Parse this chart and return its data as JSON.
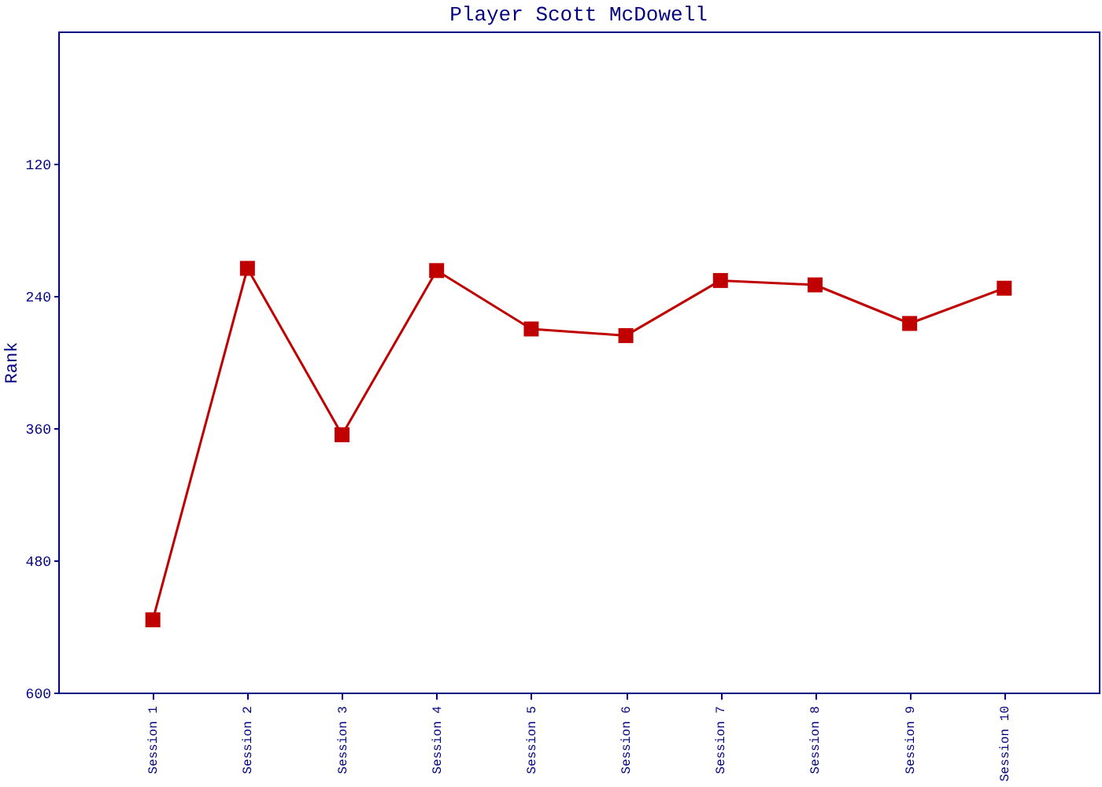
{
  "chart_data": {
    "type": "line",
    "title": "Player Scott McDowell",
    "ylabel": "Rank",
    "categories": [
      "Session 1",
      "Session 2",
      "Session 3",
      "Session 4",
      "Session 5",
      "Session 6",
      "Session 7",
      "Session 8",
      "Session 9",
      "Session 10"
    ],
    "series": [
      {
        "color": "#c00000",
        "values": [
          534,
          215,
          366,
          217,
          270,
          276,
          226,
          230,
          265,
          233
        ]
      }
    ],
    "ylim": [
      600,
      0
    ],
    "yticks": [
      120,
      240,
      360,
      480,
      600
    ],
    "grid": false,
    "legend": false,
    "marker": "square",
    "line_style": "solid"
  }
}
